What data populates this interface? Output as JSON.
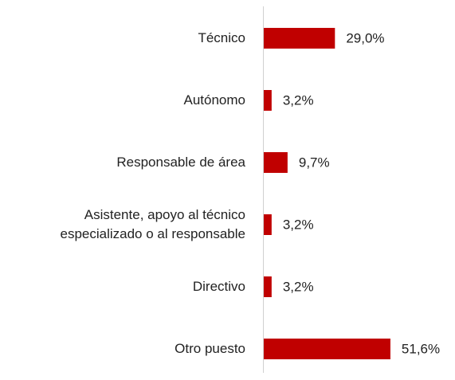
{
  "chart_data": {
    "type": "bar",
    "orientation": "horizontal",
    "categories": [
      "Técnico",
      "Autónomo",
      "Responsable de área",
      "Asistente, apoyo al técnico\nespecializado o al responsable",
      "Directivo",
      "Otro puesto"
    ],
    "values": [
      29.0,
      3.2,
      9.7,
      3.2,
      3.2,
      51.6
    ],
    "value_labels": [
      "29,0%",
      "3,2%",
      "9,7%",
      "3,2%",
      "3,2%",
      "51,6%"
    ],
    "color": "#c00000"
  }
}
